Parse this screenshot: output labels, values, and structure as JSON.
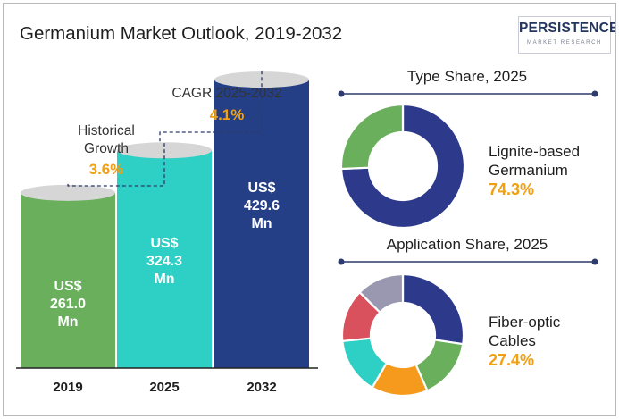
{
  "title": "Germanium Market Outlook, 2019-2032",
  "logo": {
    "name": "PERSISTENCE",
    "tagline": "MARKET RESEARCH"
  },
  "colors": {
    "bar_2019": "#6aaf5c",
    "bar_2025": "#2ecfc4",
    "bar_2032": "#253f87",
    "annotation": "#f0a010",
    "type_main": "#2d3a8c",
    "type_other": "#6aaf5c",
    "app_segments": [
      "#2d3a8c",
      "#6aaf5c",
      "#f59a1c",
      "#2ecfc4",
      "#d9515c",
      "#9a98b0"
    ]
  },
  "chart_data": [
    {
      "type": "bar",
      "title": "Germanium Market Outlook, 2019-2032",
      "categories": [
        "2019",
        "2025",
        "2032"
      ],
      "values": [
        261.0,
        324.3,
        429.6
      ],
      "unit": "US$ Mn",
      "value_labels": [
        "US$\n261.0\nMn",
        "US$\n324.3\nMn",
        "US$\n429.6\nMn"
      ],
      "annotations": [
        {
          "label": "Historical\nGrowth",
          "value": "3.6%",
          "from": "2019",
          "to": "2025"
        },
        {
          "label": "CAGR 2025-2032",
          "value": "4.1%",
          "from": "2025",
          "to": "2032"
        }
      ]
    },
    {
      "type": "pie",
      "title": "Type Share, 2025",
      "highlight_label": "Lignite-based\nGermanium",
      "highlight_value": "74.3%",
      "values": [
        74.3,
        25.7
      ]
    },
    {
      "type": "pie",
      "title": "Application Share, 2025",
      "highlight_label": "Fiber-optic\nCables",
      "highlight_value": "27.4%",
      "values": [
        27.4,
        16,
        15,
        15,
        14,
        12.6
      ]
    }
  ]
}
